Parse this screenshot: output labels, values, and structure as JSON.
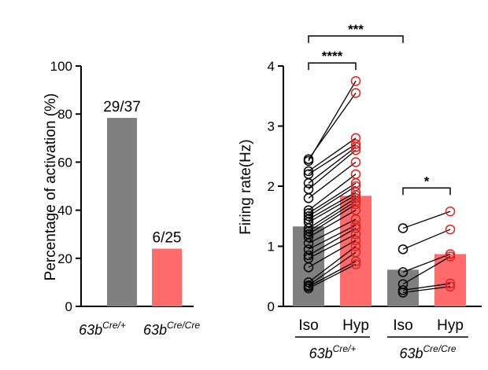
{
  "colors": {
    "control": "#7f7f7f",
    "mutant": "#ff6a6a",
    "point_control": "#000000",
    "point_mutant": "#dd2222",
    "axis": "#000000"
  },
  "chart_data": [
    {
      "type": "bar",
      "ylabel": "Percentage of activation (%)",
      "ylim": [
        0,
        100
      ],
      "yticks": [
        0,
        20,
        40,
        60,
        80,
        100
      ],
      "ytick_labels": [
        "0",
        "20",
        "40",
        "60",
        "80",
        "100"
      ],
      "categories": [
        {
          "base": "63b",
          "sup": "Cre/+"
        },
        {
          "base": "63b",
          "sup": "Cre/Cre"
        }
      ],
      "values": [
        78.4,
        24.0
      ],
      "data_labels": [
        "29/37",
        "6/25"
      ]
    },
    {
      "type": "bar",
      "ylabel": "Firing rate(Hz)",
      "ylim": [
        0,
        4
      ],
      "yticks": [
        0,
        1,
        2,
        3,
        4
      ],
      "ytick_labels": [
        "0",
        "1",
        "2",
        "3",
        "4"
      ],
      "xtick_labels": [
        "Iso",
        "Hyp",
        "Iso",
        "Hyp"
      ],
      "groups": [
        {
          "base": "63b",
          "sup": "Cre/+"
        },
        {
          "base": "63b",
          "sup": "Cre/Cre"
        }
      ],
      "bar_means": [
        1.33,
        1.84,
        0.61,
        0.87
      ],
      "paired_points": [
        [
          [
            0.3,
            0.7
          ],
          [
            0.33,
            0.75
          ],
          [
            0.35,
            0.9
          ],
          [
            0.4,
            1.0
          ],
          [
            0.65,
            1.1
          ],
          [
            0.8,
            1.2
          ],
          [
            0.85,
            1.3
          ],
          [
            0.95,
            1.35
          ],
          [
            1.05,
            1.45
          ],
          [
            1.15,
            1.6
          ],
          [
            1.2,
            1.7
          ],
          [
            1.25,
            1.75
          ],
          [
            1.3,
            1.8
          ],
          [
            1.4,
            1.85
          ],
          [
            1.45,
            1.9
          ],
          [
            1.5,
            2.0
          ],
          [
            1.55,
            2.05
          ],
          [
            1.6,
            2.2
          ],
          [
            1.8,
            2.4
          ],
          [
            1.95,
            2.6
          ],
          [
            2.05,
            2.65
          ],
          [
            2.2,
            2.7
          ],
          [
            2.25,
            2.8
          ],
          [
            2.45,
            3.55
          ],
          [
            2.42,
            3.75
          ]
        ],
        [
          [
            0.23,
            0.33
          ],
          [
            0.27,
            0.38
          ],
          [
            0.37,
            0.83
          ],
          [
            0.57,
            0.87
          ],
          [
            0.95,
            1.28
          ],
          [
            1.3,
            1.58
          ]
        ]
      ],
      "significance": [
        {
          "label": "****",
          "from": 0,
          "to": 1,
          "y": 4.05
        },
        {
          "label": "***",
          "from": 0,
          "to": 2,
          "y": 4.5
        },
        {
          "label": "*",
          "from": 2,
          "to": 3,
          "y": 1.97
        }
      ]
    }
  ]
}
